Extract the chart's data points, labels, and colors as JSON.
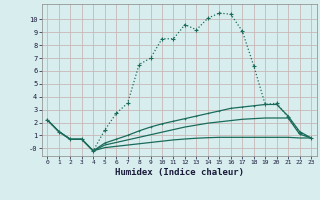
{
  "xlabel": "Humidex (Indice chaleur)",
  "xlim": [
    -0.5,
    23.5
  ],
  "ylim": [
    -0.6,
    11.2
  ],
  "xticks": [
    0,
    1,
    2,
    3,
    4,
    5,
    6,
    7,
    8,
    9,
    10,
    11,
    12,
    13,
    14,
    15,
    16,
    17,
    18,
    19,
    20,
    21,
    22,
    23
  ],
  "yticks": [
    0,
    1,
    2,
    3,
    4,
    5,
    6,
    7,
    8,
    9,
    10
  ],
  "ytick_labels": [
    "-0",
    "1",
    "2",
    "3",
    "4",
    "5",
    "6",
    "7",
    "8",
    "9",
    "10"
  ],
  "bg_color": "#d8eeee",
  "grid_color": "#c8b8b8",
  "line_color": "#1a6b5a",
  "line1_x": [
    0,
    1,
    2,
    3,
    4,
    5,
    6,
    7,
    8,
    9,
    10,
    11,
    12,
    13,
    14,
    15,
    16,
    17,
    18,
    19,
    20,
    21,
    22,
    23
  ],
  "line1_y": [
    2.2,
    1.3,
    0.7,
    0.7,
    -0.2,
    1.4,
    2.7,
    3.5,
    6.5,
    7.0,
    8.5,
    8.5,
    9.6,
    9.2,
    10.1,
    10.5,
    10.4,
    9.1,
    6.4,
    3.4,
    3.5,
    2.4,
    1.2,
    0.8
  ],
  "line2_x": [
    0,
    1,
    2,
    3,
    4,
    5,
    6,
    7,
    8,
    9,
    10,
    11,
    12,
    13,
    14,
    15,
    16,
    17,
    18,
    19,
    20,
    21,
    22,
    23
  ],
  "line2_y": [
    2.2,
    1.3,
    0.7,
    0.7,
    -0.2,
    0.4,
    0.7,
    1.0,
    1.35,
    1.65,
    1.9,
    2.1,
    2.3,
    2.5,
    2.7,
    2.9,
    3.1,
    3.2,
    3.3,
    3.4,
    3.4,
    2.5,
    1.3,
    0.8
  ],
  "line3_x": [
    0,
    1,
    2,
    3,
    4,
    5,
    6,
    7,
    8,
    9,
    10,
    11,
    12,
    13,
    14,
    15,
    16,
    17,
    18,
    19,
    20,
    21,
    22,
    23
  ],
  "line3_y": [
    2.2,
    1.3,
    0.7,
    0.7,
    -0.2,
    0.25,
    0.45,
    0.65,
    0.85,
    1.05,
    1.25,
    1.45,
    1.65,
    1.8,
    1.95,
    2.05,
    2.15,
    2.25,
    2.3,
    2.35,
    2.35,
    2.35,
    1.1,
    0.8
  ],
  "line4_x": [
    0,
    1,
    2,
    3,
    4,
    5,
    6,
    7,
    8,
    9,
    10,
    11,
    12,
    13,
    14,
    15,
    16,
    17,
    18,
    19,
    20,
    21,
    22,
    23
  ],
  "line4_y": [
    2.2,
    1.3,
    0.7,
    0.7,
    -0.2,
    0.05,
    0.15,
    0.25,
    0.35,
    0.45,
    0.55,
    0.65,
    0.72,
    0.78,
    0.82,
    0.85,
    0.85,
    0.85,
    0.85,
    0.85,
    0.85,
    0.85,
    0.8,
    0.8
  ]
}
